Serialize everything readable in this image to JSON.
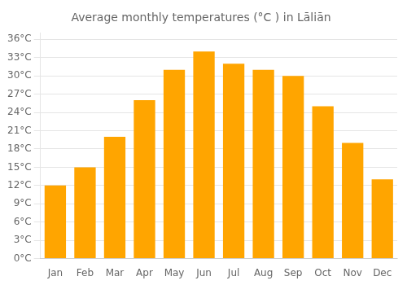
{
  "chart_data": {
    "type": "bar",
    "title": "Average monthly temperatures (°C ) in Lāliān",
    "categories": [
      "Jan",
      "Feb",
      "Mar",
      "Apr",
      "May",
      "Jun",
      "Jul",
      "Aug",
      "Sep",
      "Oct",
      "Nov",
      "Dec"
    ],
    "values": [
      12,
      15,
      20,
      26,
      31,
      34,
      32,
      31,
      30,
      25,
      19,
      13
    ],
    "color": "#FFA500",
    "ylim": [
      0,
      37
    ],
    "yticks": [
      {
        "value": 0,
        "label": "0°C"
      },
      {
        "value": 3,
        "label": "3°C"
      },
      {
        "value": 6,
        "label": "6°C"
      },
      {
        "value": 9,
        "label": "9°C"
      },
      {
        "value": 12,
        "label": "12°C"
      },
      {
        "value": 15,
        "label": "15°C"
      },
      {
        "value": 18,
        "label": "18°C"
      },
      {
        "value": 21,
        "label": "21°C"
      },
      {
        "value": 24,
        "label": "24°C"
      },
      {
        "value": 27,
        "label": "27°C"
      },
      {
        "value": 30,
        "label": "30°C"
      },
      {
        "value": 33,
        "label": "33°C"
      },
      {
        "value": 36,
        "label": "36°C"
      }
    ],
    "grid": true
  }
}
